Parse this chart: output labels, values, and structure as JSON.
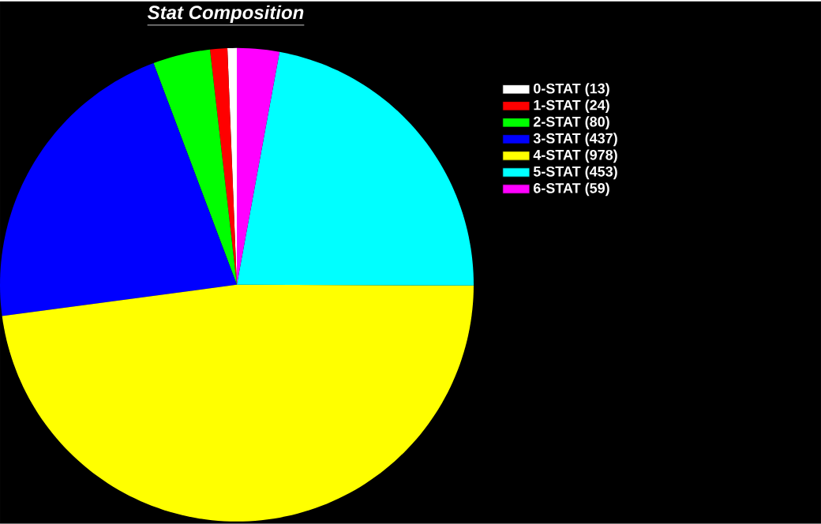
{
  "chart_data": {
    "type": "pie",
    "title": "Stat Composition",
    "categories": [
      "0-STAT (13)",
      "1-STAT (24)",
      "2-STAT (80)",
      "3-STAT (437)",
      "4-STAT (978)",
      "5-STAT (453)",
      "6-STAT (59)"
    ],
    "values": [
      13,
      24,
      80,
      437,
      978,
      453,
      59
    ],
    "colors": [
      "#ffffff",
      "#ff0000",
      "#00ff00",
      "#0000ff",
      "#ffff00",
      "#00ffff",
      "#ff00ff"
    ],
    "legend": "right"
  }
}
